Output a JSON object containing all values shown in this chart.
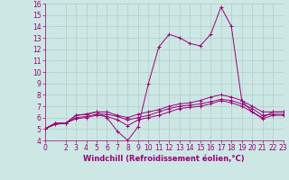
{
  "xlabel": "Windchill (Refroidissement éolien,°C)",
  "ylabel": "",
  "bg_color": "#cde8e4",
  "line_color": "#990077",
  "grid_color": "#b0ccc8",
  "xlim": [
    0,
    23
  ],
  "ylim": [
    4,
    16
  ],
  "yticks": [
    4,
    5,
    6,
    7,
    8,
    9,
    10,
    11,
    12,
    13,
    14,
    15,
    16
  ],
  "xticks": [
    0,
    2,
    3,
    4,
    5,
    6,
    7,
    8,
    9,
    10,
    11,
    12,
    13,
    14,
    15,
    16,
    17,
    18,
    19,
    20,
    21,
    22,
    23
  ],
  "series": [
    [
      0,
      5.0,
      1,
      5.5,
      2,
      5.5,
      3,
      6.2,
      4,
      6.3,
      5,
      6.5,
      6,
      6.5,
      7,
      6.2,
      8,
      6.0,
      9,
      6.3,
      10,
      6.5,
      11,
      6.7,
      12,
      7.0,
      13,
      7.2,
      14,
      7.3,
      15,
      7.5,
      16,
      7.8,
      17,
      8.0,
      18,
      7.8,
      19,
      7.5,
      20,
      7.0,
      21,
      6.5,
      22,
      6.5,
      23,
      6.5
    ],
    [
      0,
      5.0,
      1,
      5.5,
      2,
      5.5,
      3,
      6.0,
      4,
      6.1,
      5,
      6.3,
      6,
      6.3,
      7,
      6.1,
      8,
      5.8,
      9,
      6.0,
      10,
      6.2,
      11,
      6.5,
      12,
      6.8,
      13,
      7.0,
      14,
      7.1,
      15,
      7.2,
      16,
      7.4,
      17,
      7.6,
      18,
      7.5,
      19,
      7.2,
      20,
      6.8,
      21,
      6.2,
      22,
      6.3,
      23,
      6.3
    ],
    [
      0,
      5.0,
      1,
      5.4,
      2,
      5.5,
      3,
      5.9,
      4,
      6.0,
      5,
      6.2,
      6,
      6.1,
      7,
      5.8,
      8,
      5.3,
      9,
      5.8,
      10,
      6.0,
      11,
      6.2,
      12,
      6.5,
      13,
      6.8,
      14,
      6.9,
      15,
      7.0,
      16,
      7.2,
      17,
      7.5,
      18,
      7.3,
      19,
      7.0,
      20,
      6.5,
      21,
      5.9,
      22,
      6.2,
      23,
      6.2
    ],
    [
      0,
      5.0,
      1,
      5.5,
      2,
      5.5,
      3,
      6.2,
      4,
      6.3,
      5,
      6.5,
      6,
      6.0,
      7,
      4.8,
      8,
      4.0,
      9,
      5.2,
      10,
      9.0,
      11,
      12.2,
      12,
      13.3,
      13,
      13.0,
      14,
      12.5,
      15,
      12.3,
      16,
      13.3,
      17,
      15.7,
      18,
      14.0,
      19,
      7.5,
      20,
      6.5,
      21,
      6.0,
      22,
      6.5,
      23,
      6.5
    ]
  ]
}
